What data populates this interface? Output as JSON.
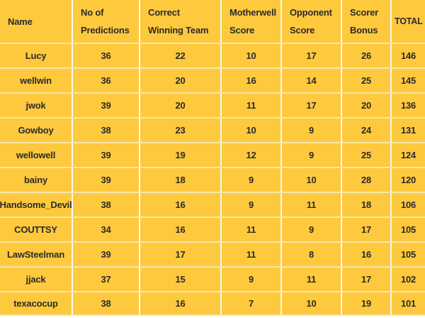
{
  "colors": {
    "table_background": "#FFC93E",
    "vertical_gridline": "#FEFBF1",
    "horizontal_gridline": "#F9E6A9",
    "text": "#2B2B2B"
  },
  "chart_data": {
    "type": "table",
    "layout": {
      "grid": "on",
      "header_rows": 1,
      "data_rows": 11
    },
    "columns": [
      {
        "key": "name",
        "label": "Name",
        "header_lines": [
          "Name"
        ]
      },
      {
        "key": "no_of_predictions",
        "label": "No of Predictions",
        "header_lines": [
          "No of",
          "Predictions"
        ]
      },
      {
        "key": "correct_winning_team",
        "label": "Correct Winning Team",
        "header_lines": [
          "Correct",
          "Winning Team"
        ]
      },
      {
        "key": "motherwell_score",
        "label": "Motherwell Score",
        "header_lines": [
          "Motherwell",
          "Score"
        ]
      },
      {
        "key": "opponent_score",
        "label": "Opponent Score",
        "header_lines": [
          "Opponent",
          "Score"
        ]
      },
      {
        "key": "scorer_bonus",
        "label": "Scorer Bonus",
        "header_lines": [
          "Scorer",
          "Bonus"
        ]
      },
      {
        "key": "total",
        "label": "TOTAL",
        "header_lines": [
          "TOTAL"
        ]
      }
    ],
    "rows": [
      [
        "Lucy",
        36,
        22,
        10,
        17,
        26,
        146
      ],
      [
        "wellwin",
        36,
        20,
        16,
        14,
        25,
        145
      ],
      [
        "jwok",
        39,
        20,
        11,
        17,
        20,
        136
      ],
      [
        "Gowboy",
        38,
        23,
        10,
        9,
        24,
        131
      ],
      [
        "wellowell",
        39,
        19,
        12,
        9,
        25,
        124
      ],
      [
        "bainy",
        39,
        18,
        9,
        10,
        28,
        120
      ],
      [
        "Handsome_Devil",
        38,
        16,
        9,
        11,
        18,
        106
      ],
      [
        "COUTTSY",
        34,
        16,
        11,
        9,
        17,
        105
      ],
      [
        "LawSteelman",
        39,
        17,
        11,
        8,
        16,
        105
      ],
      [
        "jjack",
        37,
        15,
        9,
        11,
        17,
        102
      ],
      [
        "texacocup",
        38,
        16,
        7,
        10,
        19,
        101
      ]
    ]
  }
}
